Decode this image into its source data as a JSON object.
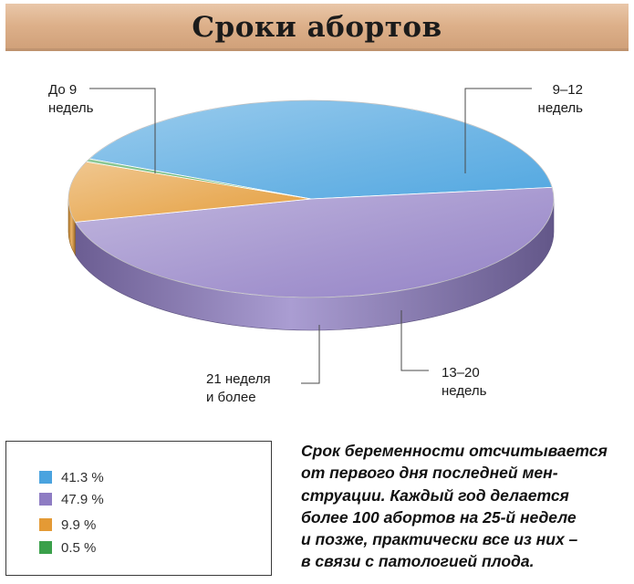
{
  "title": "Сроки абортов",
  "chart_data": {
    "type": "pie",
    "title": "Сроки абортов",
    "slices": [
      {
        "label_lines": [
          "До 9",
          "недель"
        ],
        "value": 41.3,
        "value_text": "41.3 %",
        "color": "#4aa3df"
      },
      {
        "label_lines": [
          "9–12",
          "недель"
        ],
        "value": 47.9,
        "value_text": "47.9 %",
        "color": "#8e7cc3"
      },
      {
        "label_lines": [
          "13–20",
          "недель"
        ],
        "value": 9.9,
        "value_text": "9.9 %",
        "color": "#e49a35"
      },
      {
        "label_lines": [
          "21 неделя",
          "и более"
        ],
        "value": 0.5,
        "value_text": "0.5 %",
        "color": "#3aa04a"
      }
    ],
    "legend": "bottom-left"
  },
  "note_lines": [
    "Срок беременности отсчитывается",
    "от первого дня  последней мен-",
    "струации. Каждый год делается",
    "более 100 абортов на 25-й неделе",
    "и позже, практически все из них –",
    "в связи с патологией плода."
  ]
}
